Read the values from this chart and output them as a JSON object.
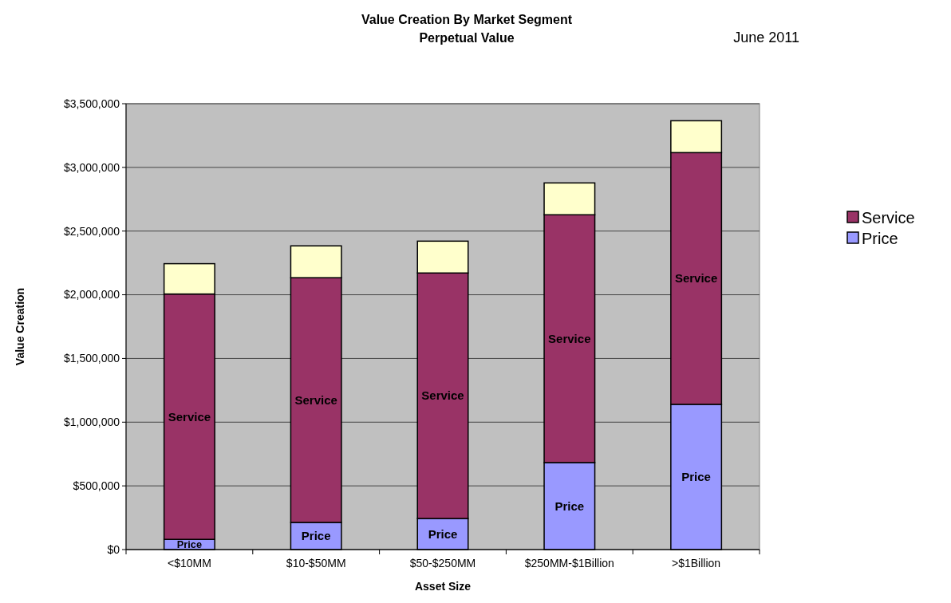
{
  "chart_data": {
    "type": "bar",
    "title": "Value Creation By Market Segment",
    "subtitle": "Perpetual Value",
    "xlabel": "Asset Size",
    "ylabel": "Value Creation",
    "categories": [
      "<$10MM",
      "$10-$50MM",
      "$50-$250MM",
      "$250MM-$1Billion",
      ">$1Billion"
    ],
    "stacked": true,
    "series": [
      {
        "name": "Price",
        "color": "#9999ff",
        "values": [
          80000,
          213000,
          244000,
          683000,
          1140000
        ]
      },
      {
        "name": "Service",
        "color": "#993366",
        "values": [
          1926000,
          1921000,
          1927000,
          1945000,
          1976000
        ]
      },
      {
        "color": "#ffffcc",
        "values": [
          238000,
          250000,
          250000,
          250000,
          250000
        ]
      }
    ],
    "ylim": [
      0,
      3500000
    ],
    "yticks": [
      {
        "value": 0,
        "label": "$0"
      },
      {
        "value": 500000,
        "label": "$500,000"
      },
      {
        "value": 1000000,
        "label": "$1,000,000"
      },
      {
        "value": 1500000,
        "label": "$1,500,000"
      },
      {
        "value": 2000000,
        "label": "$2,000,000"
      },
      {
        "value": 2500000,
        "label": "$2,500,000"
      },
      {
        "value": 3000000,
        "label": "$3,000,000"
      },
      {
        "value": 3500000,
        "label": "$3,500,000"
      }
    ],
    "grid": "y",
    "legend": "right",
    "annotations": [
      "June 2011"
    ]
  }
}
